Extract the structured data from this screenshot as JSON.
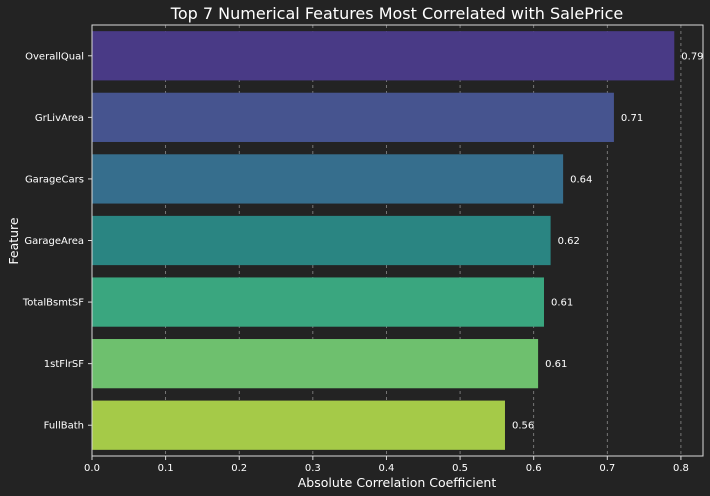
{
  "chart_data": {
    "type": "bar",
    "orientation": "horizontal",
    "title": "Top 7 Numerical Features Most Correlated with SalePrice",
    "xlabel": "Absolute Correlation Coefficient",
    "ylabel": "Feature",
    "xlim": [
      0,
      0.83
    ],
    "xticks": [
      "0.0",
      "0.1",
      "0.2",
      "0.3",
      "0.4",
      "0.5",
      "0.6",
      "0.7",
      "0.8"
    ],
    "grid": "vertical dashed",
    "categories": [
      "OverallQual",
      "GrLivArea",
      "GarageCars",
      "GarageArea",
      "TotalBsmtSF",
      "1stFlrSF",
      "FullBath"
    ],
    "values": [
      0.791,
      0.709,
      0.64,
      0.623,
      0.614,
      0.606,
      0.561
    ],
    "value_labels": [
      "0.79",
      "0.71",
      "0.64",
      "0.62",
      "0.61",
      "0.61",
      "0.56"
    ],
    "colors": [
      "#493a86",
      "#46548f",
      "#366e8d",
      "#2a8582",
      "#3aa67f",
      "#6ec06e",
      "#a5ca48"
    ]
  },
  "style": {
    "background": "#232323",
    "axis_color": "#d9d9d9",
    "grid_color": "#8a8a8a",
    "text_color": "#ffffff"
  }
}
